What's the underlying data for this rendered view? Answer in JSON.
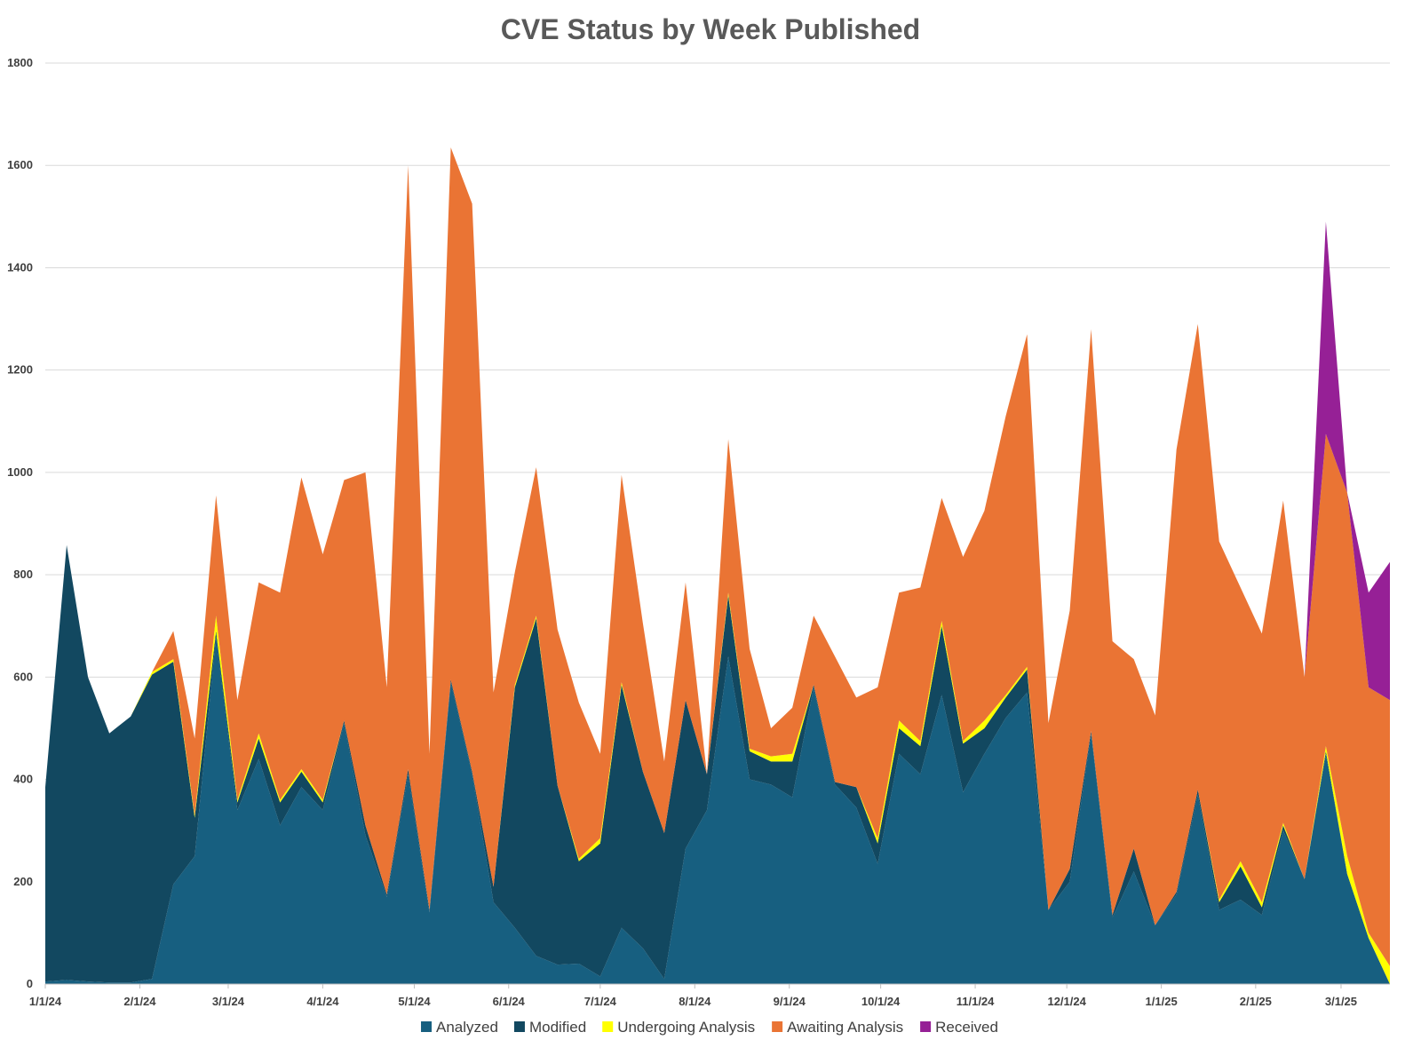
{
  "chart_data": {
    "type": "area",
    "stacked": true,
    "title": "CVE Status by Week Published",
    "xlabel": "",
    "ylabel": "",
    "ylim": [
      0,
      1800
    ],
    "yticks": [
      0,
      200,
      400,
      600,
      800,
      1000,
      1200,
      1400,
      1600,
      1800
    ],
    "xticks": [
      {
        "label": "1/1/24",
        "week": 0
      },
      {
        "label": "2/1/24",
        "week": 4.43
      },
      {
        "label": "3/1/24",
        "week": 8.57
      },
      {
        "label": "4/1/24",
        "week": 13
      },
      {
        "label": "5/1/24",
        "week": 17.29
      },
      {
        "label": "6/1/24",
        "week": 21.71
      },
      {
        "label": "7/1/24",
        "week": 26
      },
      {
        "label": "8/1/24",
        "week": 30.43
      },
      {
        "label": "9/1/24",
        "week": 34.86
      },
      {
        "label": "10/1/24",
        "week": 39.14
      },
      {
        "label": "11/1/24",
        "week": 43.57
      },
      {
        "label": "12/1/24",
        "week": 47.86
      },
      {
        "label": "1/1/25",
        "week": 52.29
      },
      {
        "label": "2/1/25",
        "week": 56.71
      },
      {
        "label": "3/1/25",
        "week": 60.71
      }
    ],
    "week_count": 64,
    "legend_position": "bottom",
    "series": [
      {
        "name": "Analyzed",
        "color": "#175F80",
        "values": [
          5,
          8,
          5,
          3,
          3,
          10,
          195,
          250,
          680,
          340,
          440,
          310,
          385,
          340,
          510,
          290,
          170,
          410,
          140,
          590,
          410,
          160,
          110,
          55,
          38,
          40,
          15,
          110,
          70,
          10,
          265,
          340,
          640,
          400,
          390,
          365,
          580,
          390,
          345,
          235,
          450,
          410,
          565,
          375,
          450,
          520,
          570,
          145,
          200,
          490,
          130,
          220,
          115,
          175,
          370,
          145,
          165,
          135,
          300,
          205,
          450,
          215,
          90,
          0
        ]
      },
      {
        "name": "Modified",
        "color": "#124860",
        "values": [
          380,
          850,
          595,
          487,
          520,
          595,
          435,
          75,
          10,
          15,
          40,
          45,
          30,
          15,
          5,
          20,
          5,
          10,
          5,
          5,
          5,
          30,
          470,
          660,
          350,
          200,
          260,
          475,
          345,
          285,
          290,
          70,
          120,
          55,
          45,
          70,
          5,
          5,
          40,
          40,
          50,
          55,
          135,
          95,
          50,
          40,
          45,
          0,
          25,
          5,
          5,
          45,
          0,
          5,
          10,
          15,
          65,
          15,
          10,
          0,
          5,
          0,
          0,
          0
        ]
      },
      {
        "name": "Undergoing Analysis",
        "color": "#FFFF00",
        "values": [
          0,
          0,
          0,
          0,
          0,
          5,
          5,
          5,
          30,
          5,
          10,
          5,
          5,
          5,
          0,
          0,
          0,
          0,
          0,
          0,
          0,
          0,
          5,
          5,
          0,
          5,
          10,
          5,
          0,
          0,
          0,
          0,
          5,
          5,
          10,
          15,
          0,
          0,
          0,
          10,
          15,
          10,
          10,
          5,
          15,
          5,
          5,
          0,
          0,
          0,
          0,
          0,
          0,
          0,
          0,
          5,
          10,
          10,
          5,
          0,
          10,
          35,
          10,
          35
        ]
      },
      {
        "name": "Awaiting Analysis",
        "color": "#EA7434",
        "values": [
          0,
          0,
          0,
          0,
          0,
          0,
          55,
          150,
          235,
          195,
          295,
          405,
          570,
          480,
          470,
          690,
          405,
          1180,
          305,
          1040,
          1110,
          380,
          220,
          290,
          305,
          305,
          165,
          405,
          290,
          140,
          230,
          0,
          300,
          195,
          55,
          90,
          135,
          245,
          175,
          295,
          250,
          300,
          240,
          360,
          410,
          545,
          650,
          365,
          505,
          785,
          535,
          370,
          410,
          865,
          910,
          700,
          535,
          525,
          630,
          395,
          610,
          710,
          480,
          520
        ]
      },
      {
        "name": "Received",
        "color": "#962096",
        "values": [
          0,
          0,
          0,
          0,
          0,
          0,
          0,
          0,
          0,
          0,
          0,
          0,
          0,
          0,
          0,
          0,
          0,
          0,
          0,
          0,
          0,
          0,
          0,
          0,
          0,
          0,
          0,
          0,
          0,
          0,
          0,
          0,
          0,
          0,
          0,
          0,
          0,
          0,
          0,
          0,
          0,
          0,
          0,
          0,
          0,
          0,
          0,
          0,
          0,
          0,
          0,
          0,
          0,
          0,
          0,
          0,
          0,
          0,
          0,
          0,
          415,
          0,
          185,
          270
        ]
      }
    ]
  }
}
